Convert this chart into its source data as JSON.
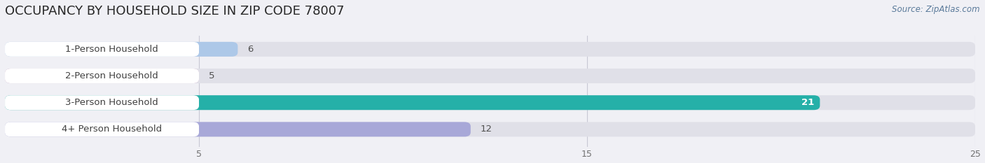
{
  "title": "OCCUPANCY BY HOUSEHOLD SIZE IN ZIP CODE 78007",
  "source": "Source: ZipAtlas.com",
  "categories": [
    "1-Person Household",
    "2-Person Household",
    "3-Person Household",
    "4+ Person Household"
  ],
  "values": [
    6,
    5,
    21,
    12
  ],
  "bar_colors": [
    "#adc8e8",
    "#c4a0c4",
    "#25b0a8",
    "#a8a8d8"
  ],
  "xlim": [
    0,
    25
  ],
  "xticks": [
    5,
    15,
    25
  ],
  "title_fontsize": 13,
  "background_color": "#f0f0f5",
  "bar_bg_color": "#e0e0e8",
  "label_box_color": "#ffffff",
  "value_text_color_outside": "#505050",
  "value_text_color_inside": "#ffffff",
  "grid_color": "#c8c8d4",
  "tick_color": "#707070"
}
